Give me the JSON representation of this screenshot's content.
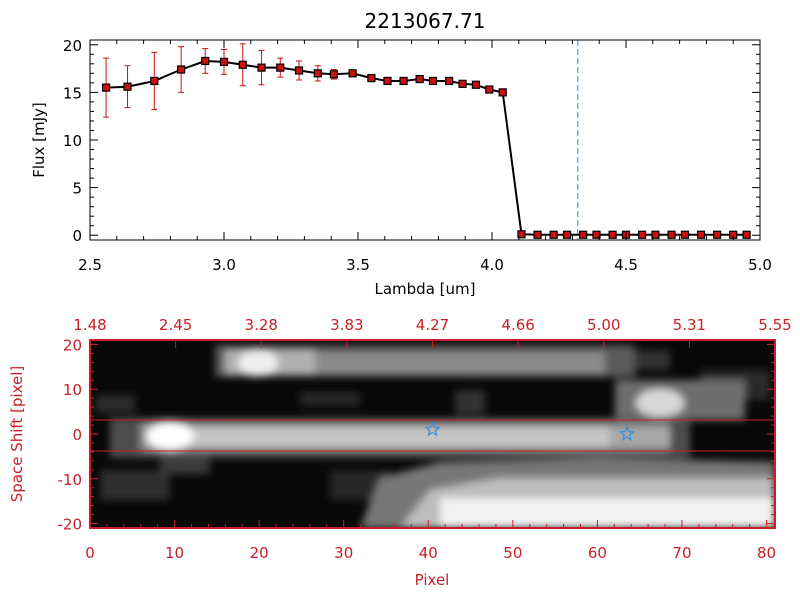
{
  "chart_data": [
    {
      "type": "line",
      "title": "2213067.71",
      "xlabel": "Lambda [um]",
      "ylabel": "Flux [mJy]",
      "xlim": [
        2.5,
        5.0
      ],
      "ylim": [
        -0.5,
        20.5
      ],
      "xticks": [
        "2.5",
        "3.0",
        "3.5",
        "4.0",
        "4.5",
        "5.0"
      ],
      "yticks": [
        "0",
        "5",
        "10",
        "15",
        "20"
      ],
      "x": [
        2.56,
        2.64,
        2.74,
        2.84,
        2.93,
        3.0,
        3.07,
        3.14,
        3.21,
        3.28,
        3.35,
        3.41,
        3.48,
        3.55,
        3.61,
        3.67,
        3.73,
        3.78,
        3.84,
        3.89,
        3.94,
        3.99,
        4.04,
        4.11,
        4.17,
        4.23,
        4.28,
        4.34,
        4.39,
        4.45,
        4.5,
        4.56,
        4.61,
        4.67,
        4.72,
        4.78,
        4.84,
        4.9,
        4.95
      ],
      "y": [
        15.5,
        15.6,
        16.2,
        17.4,
        18.3,
        18.2,
        17.9,
        17.6,
        17.6,
        17.3,
        17.0,
        16.9,
        17.0,
        16.5,
        16.2,
        16.2,
        16.4,
        16.2,
        16.2,
        15.9,
        15.8,
        15.3,
        15.0,
        0.1,
        0.05,
        0.05,
        0.05,
        0.05,
        0.05,
        0.05,
        0.05,
        0.05,
        0.05,
        0.05,
        0.05,
        0.05,
        0.05,
        0.05,
        0.05
      ],
      "yerr": [
        3.1,
        2.2,
        3.0,
        2.4,
        1.3,
        1.3,
        2.2,
        1.8,
        1.0,
        1.0,
        0.8,
        0.5,
        0,
        0,
        0,
        0,
        0,
        0,
        0,
        0,
        0,
        0,
        0,
        0,
        0,
        0,
        0,
        0,
        0,
        0,
        0,
        0,
        0,
        0,
        0,
        0,
        0,
        0,
        0
      ],
      "vline_x": 4.32,
      "colors": {
        "line": "#000000",
        "marker": "#cc1111",
        "errorbar": "#cc1111",
        "vline": "#2a8fd6"
      }
    },
    {
      "type": "heatmap",
      "xlabel": "Pixel",
      "ylabel": "Space Shift [pixel]",
      "xlim": [
        0,
        81
      ],
      "ylim": [
        -21,
        21
      ],
      "xticks": [
        "0",
        "10",
        "20",
        "30",
        "40",
        "50",
        "60",
        "70",
        "80"
      ],
      "yticks": [
        "-20",
        "-10",
        "0",
        "10",
        "20"
      ],
      "top_axis_ticks": [
        "1.48",
        "2.45",
        "3.28",
        "3.83",
        "4.27",
        "4.66",
        "5.00",
        "5.31",
        "5.55"
      ],
      "aperture_lines_y": [
        3,
        -3
      ],
      "source_markers": [
        {
          "x": 40.5,
          "y": 1
        },
        {
          "x": 63.5,
          "y": 0
        }
      ],
      "colors": {
        "axis": "#c8202a",
        "marker": "#3a8fe0",
        "aperture": "#c8202a"
      }
    }
  ]
}
